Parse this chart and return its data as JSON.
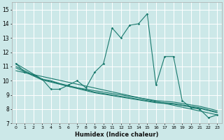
{
  "xlabel": "Humidex (Indice chaleur)",
  "bg_color": "#cce8e8",
  "grid_color": "#b0d4d4",
  "line_color": "#1a7a6e",
  "xlim": [
    -0.5,
    23.5
  ],
  "ylim": [
    7,
    15.5
  ],
  "yticks": [
    7,
    8,
    9,
    10,
    11,
    12,
    13,
    14,
    15
  ],
  "xticks": [
    0,
    1,
    2,
    3,
    4,
    5,
    6,
    7,
    8,
    9,
    10,
    11,
    12,
    13,
    14,
    15,
    16,
    17,
    18,
    19,
    20,
    21,
    22,
    23
  ],
  "series1": [
    [
      0,
      11.2
    ],
    [
      1,
      10.6
    ],
    [
      2,
      10.4
    ],
    [
      3,
      10.1
    ],
    [
      4,
      9.4
    ],
    [
      5,
      9.4
    ],
    [
      6,
      9.7
    ],
    [
      7,
      10.0
    ],
    [
      8,
      9.5
    ],
    [
      9,
      10.6
    ],
    [
      10,
      11.2
    ],
    [
      11,
      13.7
    ],
    [
      12,
      13.0
    ],
    [
      13,
      13.9
    ],
    [
      14,
      14.0
    ],
    [
      15,
      14.7
    ],
    [
      16,
      9.7
    ],
    [
      17,
      11.7
    ],
    [
      18,
      11.7
    ],
    [
      19,
      8.6
    ],
    [
      20,
      8.1
    ],
    [
      21,
      8.0
    ],
    [
      22,
      7.4
    ],
    [
      23,
      7.6
    ]
  ],
  "series2": [
    [
      0,
      11.2
    ],
    [
      3,
      10.1
    ],
    [
      4,
      10.0
    ],
    [
      5,
      9.8
    ],
    [
      6,
      9.6
    ],
    [
      7,
      9.5
    ],
    [
      8,
      9.4
    ],
    [
      9,
      9.3
    ],
    [
      10,
      9.2
    ],
    [
      11,
      9.1
    ],
    [
      12,
      9.0
    ],
    [
      13,
      8.9
    ],
    [
      14,
      8.8
    ],
    [
      15,
      8.7
    ],
    [
      16,
      8.6
    ],
    [
      17,
      8.55
    ],
    [
      18,
      8.5
    ],
    [
      19,
      8.4
    ],
    [
      20,
      8.3
    ],
    [
      21,
      8.2
    ],
    [
      22,
      8.05
    ],
    [
      23,
      7.9
    ]
  ],
  "series3": [
    [
      0,
      11.0
    ],
    [
      3,
      10.1
    ],
    [
      4,
      9.95
    ],
    [
      5,
      9.8
    ],
    [
      6,
      9.65
    ],
    [
      7,
      9.5
    ],
    [
      8,
      9.35
    ],
    [
      9,
      9.2
    ],
    [
      10,
      9.1
    ],
    [
      11,
      9.0
    ],
    [
      12,
      8.9
    ],
    [
      13,
      8.8
    ],
    [
      14,
      8.7
    ],
    [
      15,
      8.6
    ],
    [
      16,
      8.5
    ],
    [
      17,
      8.45
    ],
    [
      18,
      8.4
    ],
    [
      19,
      8.3
    ],
    [
      20,
      8.2
    ],
    [
      21,
      8.1
    ],
    [
      22,
      7.95
    ],
    [
      23,
      7.8
    ]
  ],
  "series4": [
    [
      0,
      10.9
    ],
    [
      3,
      10.05
    ],
    [
      4,
      9.9
    ],
    [
      5,
      9.75
    ],
    [
      6,
      9.6
    ],
    [
      7,
      9.45
    ],
    [
      8,
      9.3
    ],
    [
      9,
      9.15
    ],
    [
      10,
      9.05
    ],
    [
      11,
      8.95
    ],
    [
      12,
      8.85
    ],
    [
      13,
      8.75
    ],
    [
      14,
      8.65
    ],
    [
      15,
      8.55
    ],
    [
      16,
      8.45
    ],
    [
      17,
      8.4
    ],
    [
      18,
      8.35
    ],
    [
      19,
      8.25
    ],
    [
      20,
      8.15
    ],
    [
      21,
      8.05
    ],
    [
      22,
      7.9
    ],
    [
      23,
      7.75
    ]
  ],
  "series5_reg": [
    [
      0,
      10.7
    ],
    [
      23,
      7.6
    ]
  ]
}
